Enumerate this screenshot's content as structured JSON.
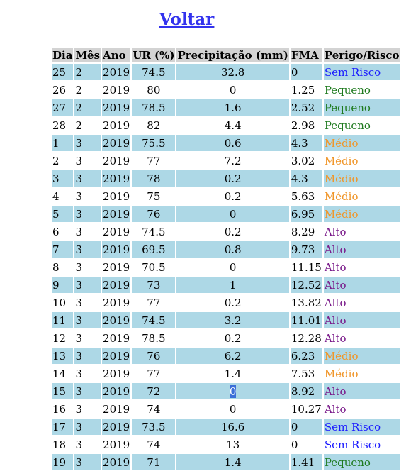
{
  "back_link": {
    "label": "Voltar"
  },
  "colors": {
    "row_alt": "#add8e6",
    "header_bg": "#d3d3d3",
    "link": "#3333ee",
    "Sem Risco": "#1a1aff",
    "Pequeno": "#1e7a1e",
    "Médio": "#f0962a",
    "Alto": "#7a1a8a"
  },
  "table": {
    "headers": [
      "Dia",
      "Mês",
      "Ano",
      "UR (%)",
      "Precipitação (mm)",
      "FMA",
      "Perigo/Risco"
    ],
    "rows": [
      [
        "25",
        "2",
        "2019",
        "74.5",
        "32.8",
        "0",
        "Sem Risco"
      ],
      [
        "26",
        "2",
        "2019",
        "80",
        "0",
        "1.25",
        "Pequeno"
      ],
      [
        "27",
        "2",
        "2019",
        "78.5",
        "1.6",
        "2.52",
        "Pequeno"
      ],
      [
        "28",
        "2",
        "2019",
        "82",
        "4.4",
        "2.98",
        "Pequeno"
      ],
      [
        "1",
        "3",
        "2019",
        "75.5",
        "0.6",
        "4.3",
        "Médio"
      ],
      [
        "2",
        "3",
        "2019",
        "77",
        "7.2",
        "3.02",
        "Médio"
      ],
      [
        "3",
        "3",
        "2019",
        "78",
        "0.2",
        "4.3",
        "Médio"
      ],
      [
        "4",
        "3",
        "2019",
        "75",
        "0.2",
        "5.63",
        "Médio"
      ],
      [
        "5",
        "3",
        "2019",
        "76",
        "0",
        "6.95",
        "Médio"
      ],
      [
        "6",
        "3",
        "2019",
        "74.5",
        "0.2",
        "8.29",
        "Alto"
      ],
      [
        "7",
        "3",
        "2019",
        "69.5",
        "0.8",
        "9.73",
        "Alto"
      ],
      [
        "8",
        "3",
        "2019",
        "70.5",
        "0",
        "11.15",
        "Alto"
      ],
      [
        "9",
        "3",
        "2019",
        "73",
        "1",
        "12.52",
        "Alto"
      ],
      [
        "10",
        "3",
        "2019",
        "77",
        "0.2",
        "13.82",
        "Alto"
      ],
      [
        "11",
        "3",
        "2019",
        "74.5",
        "3.2",
        "11.01",
        "Alto"
      ],
      [
        "12",
        "3",
        "2019",
        "78.5",
        "0.2",
        "12.28",
        "Alto"
      ],
      [
        "13",
        "3",
        "2019",
        "76",
        "6.2",
        "6.23",
        "Médio"
      ],
      [
        "14",
        "3",
        "2019",
        "77",
        "1.4",
        "7.53",
        "Médio"
      ],
      [
        "15",
        "3",
        "2019",
        "72",
        "0",
        "8.92",
        "Alto"
      ],
      [
        "16",
        "3",
        "2019",
        "74",
        "0",
        "10.27",
        "Alto"
      ],
      [
        "17",
        "3",
        "2019",
        "73.5",
        "16.6",
        "0",
        "Sem Risco"
      ],
      [
        "18",
        "3",
        "2019",
        "74",
        "13",
        "0",
        "Sem Risco"
      ],
      [
        "19",
        "3",
        "2019",
        "71",
        "1.4",
        "1.41",
        "Pequeno"
      ]
    ]
  }
}
